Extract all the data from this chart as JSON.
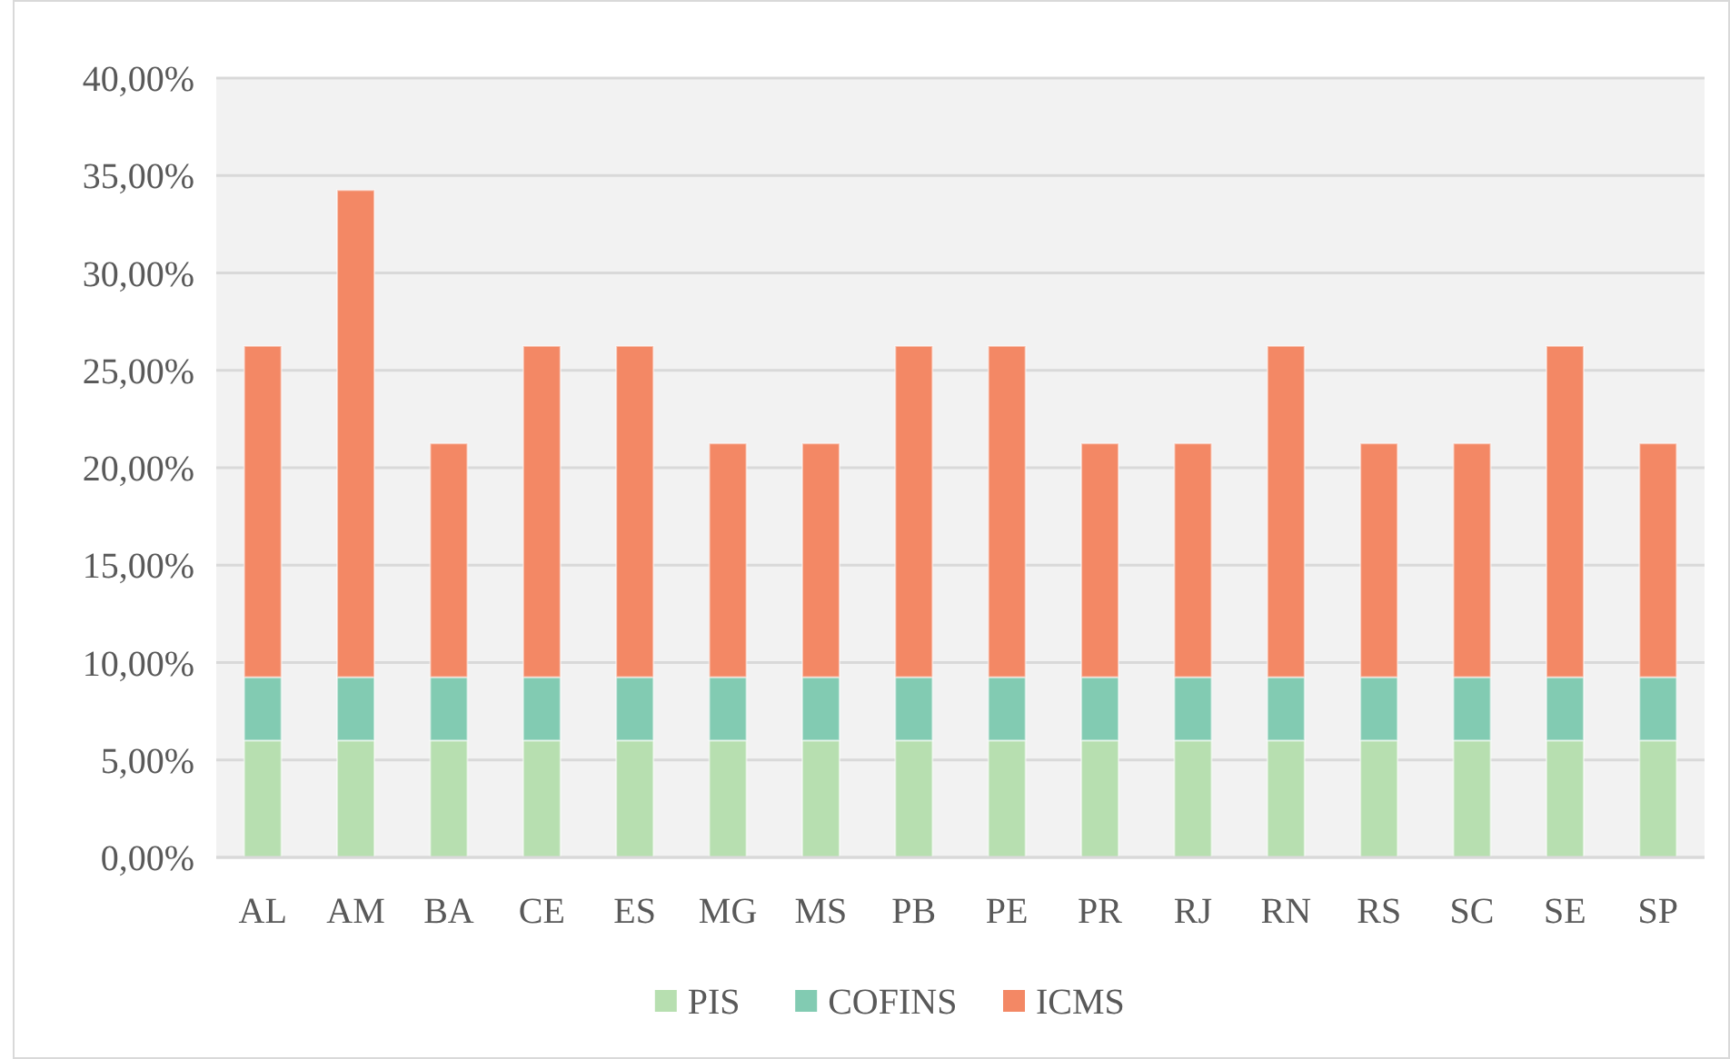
{
  "chart_data": {
    "type": "bar",
    "stacked": true,
    "categories": [
      "AL",
      "AM",
      "BA",
      "CE",
      "ES",
      "MG",
      "MS",
      "PB",
      "PE",
      "PR",
      "RJ",
      "RN",
      "RS",
      "SC",
      "SE",
      "SP"
    ],
    "series": [
      {
        "name": "PIS",
        "color": "#b7dfb0",
        "values": [
          6,
          6,
          6,
          6,
          6,
          6,
          6,
          6,
          6,
          6,
          6,
          6,
          6,
          6,
          6,
          6
        ]
      },
      {
        "name": "COFINS",
        "color": "#82cbb2",
        "values": [
          3.25,
          3.25,
          3.25,
          3.25,
          3.25,
          3.25,
          3.25,
          3.25,
          3.25,
          3.25,
          3.25,
          3.25,
          3.25,
          3.25,
          3.25,
          3.25
        ]
      },
      {
        "name": "ICMS",
        "color": "#f38865",
        "values": [
          17,
          25,
          12,
          17,
          17,
          12,
          12,
          17,
          17,
          12,
          12,
          17,
          12,
          12,
          17,
          12
        ]
      }
    ],
    "ylim": [
      0,
      40
    ],
    "yticks": [
      {
        "value": 0,
        "label": "0,00%"
      },
      {
        "value": 5,
        "label": "5,00%"
      },
      {
        "value": 10,
        "label": "10,00%"
      },
      {
        "value": 15,
        "label": "15,00%"
      },
      {
        "value": 20,
        "label": "20,00%"
      },
      {
        "value": 25,
        "label": "25,00%"
      },
      {
        "value": 30,
        "label": "30,00%"
      },
      {
        "value": 35,
        "label": "35,00%"
      },
      {
        "value": 40,
        "label": "40,00%"
      }
    ],
    "grid": "y",
    "legend": "bottom"
  }
}
